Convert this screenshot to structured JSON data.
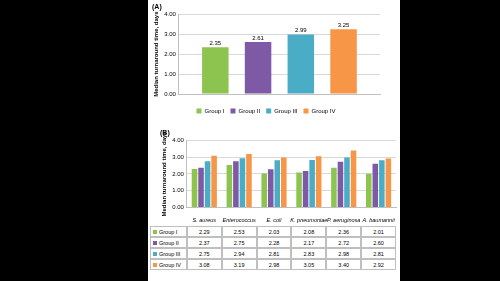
{
  "chart_data": [
    {
      "type": "bar",
      "title": "(A)",
      "y_label": "Median turnaround time, days",
      "categories": [
        null
      ],
      "series": [
        {
          "name": "Group I",
          "color": "#8dc450",
          "values": [
            2.35
          ]
        },
        {
          "name": "Group II",
          "color": "#7e5aa6",
          "values": [
            2.61
          ]
        },
        {
          "name": "Group III",
          "color": "#4bacc6",
          "values": [
            2.99
          ]
        },
        {
          "name": "Group IV",
          "color": "#f79646",
          "values": [
            3.25
          ]
        }
      ],
      "ylim": [
        0,
        4
      ],
      "yticks": [
        {
          "value": 0,
          "label": "0.00"
        },
        {
          "value": 1,
          "label": "1.00"
        },
        {
          "value": 2,
          "label": "2.00"
        },
        {
          "value": 3,
          "label": "3.00"
        },
        {
          "value": 4,
          "label": "4.00"
        }
      ],
      "grid": true,
      "legend": "bottom",
      "data_labels": true
    },
    {
      "type": "bar",
      "title": "(B)",
      "y_label": "Median turnaround time, days",
      "categories": [
        "S. aureus",
        "Enterococcus",
        "E. coli",
        "K. pneumoniae",
        "P. aeruginosa",
        "A. baumannii"
      ],
      "series": [
        {
          "name": "Group I",
          "color": "#8dc450",
          "values": [
            2.29,
            2.53,
            2.03,
            2.08,
            2.36,
            2.01
          ],
          "value_labels": [
            "2.29",
            "2.53",
            "2.03",
            "2.08",
            "2.36",
            "2.01"
          ]
        },
        {
          "name": "Group II",
          "color": "#7e5aa6",
          "values": [
            2.37,
            2.75,
            2.28,
            2.17,
            2.72,
            2.6
          ],
          "value_labels": [
            "2.37",
            "2.75",
            "2.28",
            "2.17",
            "2.72",
            "2.60"
          ]
        },
        {
          "name": "Group III",
          "color": "#4bacc6",
          "values": [
            2.75,
            2.94,
            2.81,
            2.83,
            2.98,
            2.81
          ],
          "value_labels": [
            "2.75",
            "2.94",
            "2.81",
            "2.83",
            "2.98",
            "2.81"
          ]
        },
        {
          "name": "Group IV",
          "color": "#f79646",
          "values": [
            3.08,
            3.19,
            2.98,
            3.05,
            3.4,
            2.92
          ],
          "value_labels": [
            "3.08",
            "3.19",
            "2.98",
            "3.05",
            "3.40",
            "2.92"
          ]
        }
      ],
      "ylim": [
        0,
        4
      ],
      "yticks": [
        {
          "value": 0,
          "label": "0.00"
        },
        {
          "value": 1,
          "label": "1.00"
        },
        {
          "value": 2,
          "label": "2.00"
        },
        {
          "value": 3,
          "label": "3.00"
        },
        {
          "value": 4,
          "label": "4.00"
        }
      ],
      "grid": true
    }
  ]
}
